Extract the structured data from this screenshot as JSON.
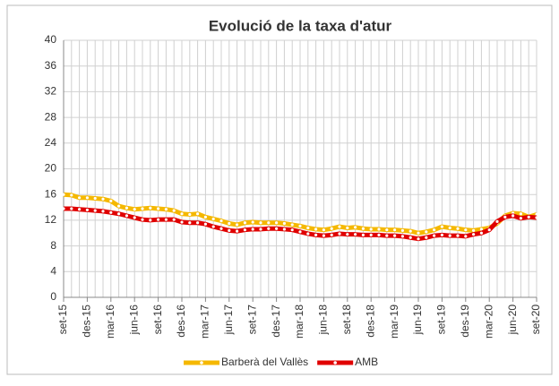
{
  "chart_data": {
    "type": "line",
    "title": "Evolució de la taxa d'atur",
    "categories": [
      "set-15",
      null,
      null,
      "des-15",
      null,
      null,
      "mar-16",
      null,
      null,
      "jun-16",
      null,
      null,
      "set-16",
      null,
      null,
      "des-16",
      null,
      null,
      "mar-17",
      null,
      null,
      "jun-17",
      null,
      null,
      "set-17",
      null,
      null,
      "des-17",
      null,
      null,
      "mar-18",
      null,
      null,
      "jun-18",
      null,
      null,
      "set-18",
      null,
      null,
      "des-18",
      null,
      null,
      "mar-19",
      null,
      null,
      "jun-19",
      null,
      null,
      "set-19",
      null,
      null,
      "des-19",
      null,
      null,
      "mar-20",
      null,
      null,
      "jun-20",
      null,
      null,
      "set-20"
    ],
    "series": [
      {
        "name": "Barberà del Vallès",
        "color": "#f5b800",
        "values": [
          16.0,
          15.9,
          15.5,
          15.5,
          15.4,
          15.3,
          15.0,
          14.2,
          13.9,
          13.7,
          13.8,
          13.9,
          13.8,
          13.7,
          13.5,
          13.0,
          12.9,
          13.0,
          12.5,
          12.2,
          11.9,
          11.5,
          11.3,
          11.6,
          11.7,
          11.6,
          11.6,
          11.6,
          11.5,
          11.3,
          11.1,
          10.8,
          10.6,
          10.5,
          10.7,
          11.0,
          10.8,
          10.9,
          10.7,
          10.6,
          10.6,
          10.5,
          10.5,
          10.4,
          10.3,
          10.0,
          10.2,
          10.5,
          11.0,
          10.8,
          10.7,
          10.5,
          10.4,
          10.6,
          10.8,
          11.5,
          12.7,
          13.1,
          13.0,
          12.5,
          12.9
        ]
      },
      {
        "name": "AMB",
        "color": "#e00000",
        "values": [
          13.8,
          13.8,
          13.7,
          13.6,
          13.5,
          13.4,
          13.2,
          13.0,
          12.7,
          12.4,
          12.1,
          12.0,
          12.1,
          12.1,
          12.1,
          11.7,
          11.6,
          11.6,
          11.4,
          11.0,
          10.7,
          10.4,
          10.3,
          10.5,
          10.6,
          10.6,
          10.7,
          10.7,
          10.6,
          10.5,
          10.2,
          9.9,
          9.7,
          9.6,
          9.7,
          9.9,
          9.8,
          9.8,
          9.7,
          9.7,
          9.7,
          9.6,
          9.6,
          9.5,
          9.3,
          9.1,
          9.3,
          9.6,
          9.7,
          9.6,
          9.6,
          9.5,
          9.8,
          10.0,
          10.5,
          11.8,
          12.5,
          12.7,
          12.3,
          12.5,
          12.4
        ]
      }
    ],
    "ylim": [
      0,
      40
    ],
    "yticks": [
      0,
      4,
      8,
      12,
      16,
      20,
      24,
      28,
      32,
      36,
      40
    ],
    "grid": true,
    "legend": "bottom"
  }
}
